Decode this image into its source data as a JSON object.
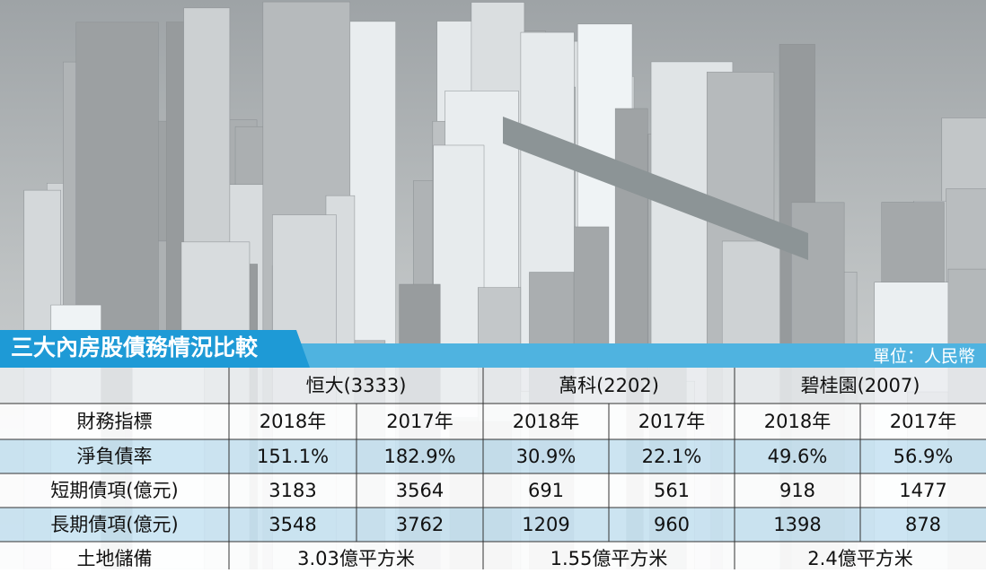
{
  "title": "三大內房股債務情況比較",
  "unit": "單位：人民幣",
  "table": {
    "groups": [
      "恒大(3333)",
      "萬科(2202)",
      "碧桂園(2007)"
    ],
    "header": [
      "財務指標",
      "2018年",
      "2017年",
      "2018年",
      "2017年",
      "2018年",
      "2017年"
    ],
    "rows": [
      [
        "淨負債率",
        "151.1%",
        "182.9%",
        "30.9%",
        "22.1%",
        "49.6%",
        "56.9%"
      ],
      [
        "短期債項(億元)",
        "3183",
        "3564",
        "691",
        "561",
        "918",
        "1477"
      ],
      [
        "長期債項(億元)",
        "3548",
        "3762",
        "1209",
        "960",
        "1398",
        "878"
      ]
    ],
    "land": {
      "label": "土地儲備",
      "values": [
        "3.03億平方米",
        "1.55億平方米",
        "2.4億平方米"
      ]
    }
  }
}
